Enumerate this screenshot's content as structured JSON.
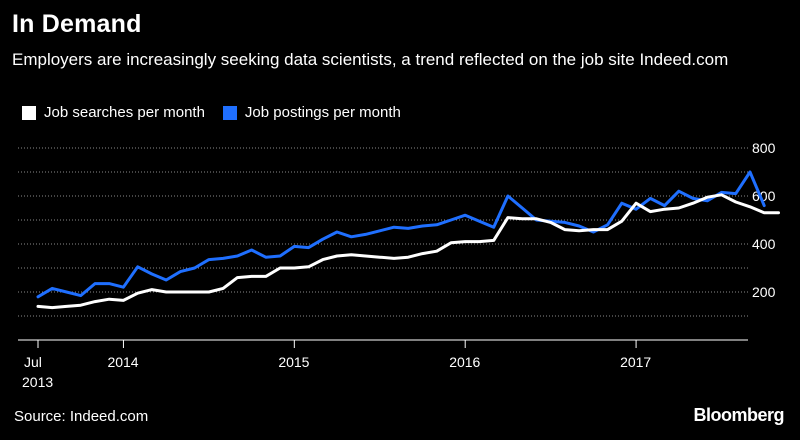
{
  "title": "In Demand",
  "subtitle": "Employers are increasingly seeking data scientists, a trend reflected on the job site Indeed.com",
  "source": "Source: Indeed.com",
  "brand": "Bloomberg",
  "colors": {
    "background": "#000000",
    "searches": "#ffffff",
    "postings": "#1f6fff",
    "grid": "#8a8a8a"
  },
  "chart_data": {
    "type": "line",
    "legend_position": "top-left",
    "grid": true,
    "x_start": "2013-07",
    "x_step": "month",
    "ylim": [
      0,
      800
    ],
    "y_ticks": [
      200,
      400,
      600,
      800
    ],
    "y_gridlines": [
      100,
      200,
      300,
      400,
      500,
      600,
      700,
      800
    ],
    "x_ticks": [
      {
        "month_index": 0,
        "label": "Jul",
        "sublabel": "2013"
      },
      {
        "month_index": 6,
        "label": "2014",
        "sublabel": ""
      },
      {
        "month_index": 18,
        "label": "2015",
        "sublabel": ""
      },
      {
        "month_index": 30,
        "label": "2016",
        "sublabel": ""
      },
      {
        "month_index": 42,
        "label": "2017",
        "sublabel": ""
      }
    ],
    "series": [
      {
        "name": "Job searches per month",
        "color": "#ffffff",
        "values": [
          140,
          135,
          140,
          145,
          160,
          170,
          165,
          195,
          210,
          200,
          200,
          200,
          200,
          215,
          260,
          265,
          265,
          300,
          300,
          305,
          335,
          350,
          355,
          350,
          345,
          340,
          345,
          360,
          370,
          405,
          410,
          410,
          415,
          510,
          505,
          505,
          490,
          460,
          455,
          460,
          460,
          495,
          570,
          535,
          545,
          550,
          570,
          595,
          605,
          575,
          555,
          530,
          530
        ]
      },
      {
        "name": "Job postings per month",
        "color": "#1f6fff",
        "values": [
          180,
          215,
          200,
          185,
          235,
          235,
          220,
          305,
          275,
          250,
          285,
          300,
          335,
          340,
          350,
          375,
          345,
          350,
          390,
          385,
          420,
          450,
          430,
          440,
          455,
          470,
          465,
          475,
          480,
          500,
          520,
          495,
          470,
          600,
          550,
          500,
          495,
          490,
          475,
          450,
          480,
          570,
          545,
          590,
          560,
          620,
          590,
          580,
          615,
          610,
          700,
          560
        ]
      }
    ]
  }
}
